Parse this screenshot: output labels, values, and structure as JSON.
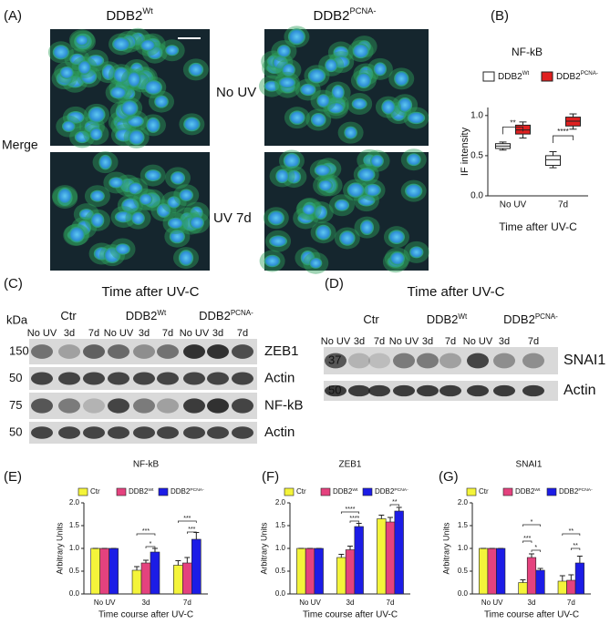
{
  "panel_labels": [
    "(A)",
    "(B)",
    "(C)",
    "(D)",
    "(E)",
    "(F)",
    "(G)"
  ],
  "panel_a": {
    "col_titles": [
      {
        "base": "DDB2",
        "sup": "Wt"
      },
      {
        "base": "DDB2",
        "sup": "PCNA-"
      }
    ],
    "row_labels": [
      "No UV",
      "UV 7d"
    ],
    "side_label": "Merge"
  },
  "panel_c": {
    "title": "Time after UV-C",
    "unit": "kDa",
    "groups": [
      {
        "base": "Ctr"
      },
      {
        "base": "DDB2",
        "sup": "Wt"
      },
      {
        "base": "DDB2",
        "sup": "PCNA-"
      }
    ],
    "lanes": [
      "No UV",
      "3d",
      "7d",
      "No UV",
      "3d",
      "7d",
      "No UV",
      "3d",
      "7d"
    ],
    "blots": [
      {
        "kda": "150",
        "name": "ZEB1"
      },
      {
        "kda": "50",
        "name": "Actin"
      },
      {
        "kda": "75",
        "name": "NF-kB"
      },
      {
        "kda": "50",
        "name": "Actin"
      }
    ]
  },
  "panel_d": {
    "title": "Time after UV-C",
    "groups": [
      {
        "base": "Ctr"
      },
      {
        "base": "DDB2",
        "sup": "Wt"
      },
      {
        "base": "DDB2",
        "sup": "PCNA-"
      }
    ],
    "lanes": [
      "No UV",
      "3d",
      "7d",
      "No UV",
      "3d",
      "7d",
      "No UV",
      "3d",
      "7d"
    ],
    "blots": [
      {
        "kda": "37",
        "name": "SNAI1"
      },
      {
        "kda": "50",
        "name": "Actin"
      }
    ]
  },
  "chart_data": [
    {
      "type": "box",
      "title": "NF-kB",
      "y_label": "IF intensity",
      "x_label": "Time after UV-C",
      "categories": [
        "No UV",
        "7d"
      ],
      "ylim": [
        0,
        1.1
      ],
      "yticks": [
        {
          "value": 0,
          "label": "0.0"
        },
        0.5,
        {
          "value": 1,
          "label": "1.0"
        }
      ],
      "series": [
        {
          "name": "DDB2",
          "sup": "Wt",
          "color": "#ffffff",
          "boxes": [
            {
              "min": 0.57,
              "q1": 0.59,
              "median": 0.62,
              "q3": 0.65,
              "max": 0.67
            },
            {
              "min": 0.35,
              "q1": 0.38,
              "median": 0.45,
              "q3": 0.5,
              "max": 0.55
            }
          ]
        },
        {
          "name": "DDB2",
          "sup": "PCNA-",
          "color": "#e02020",
          "boxes": [
            {
              "min": 0.72,
              "q1": 0.77,
              "median": 0.82,
              "q3": 0.88,
              "max": 0.92
            },
            {
              "min": 0.83,
              "q1": 0.87,
              "median": 0.93,
              "q3": 0.98,
              "max": 1.02
            }
          ]
        }
      ],
      "significance": [
        "**",
        "****"
      ]
    },
    {
      "type": "bar",
      "title": "NF-kB",
      "y_label": "Arbitrary Units",
      "x_label": "Time course after UV-C",
      "categories": [
        "No UV",
        "3d",
        "7d"
      ],
      "ylim": [
        0,
        2
      ],
      "yticks": [
        {
          "value": 0,
          "label": "0.0"
        },
        0.5,
        {
          "value": 1,
          "label": "1.0"
        },
        1.5,
        {
          "value": 2,
          "label": "2.0"
        }
      ],
      "series": [
        {
          "name": "Ctr",
          "color": "#f4f43a",
          "values": [
            1,
            0.52,
            0.63
          ],
          "errors": [
            0,
            0.08,
            0.1
          ]
        },
        {
          "name": "DDB2",
          "sup": "Wt",
          "color": "#e4427e",
          "values": [
            1,
            0.68,
            0.68
          ],
          "errors": [
            0,
            0.06,
            0.12
          ]
        },
        {
          "name": "DDB2",
          "sup": "PCNA-",
          "color": "#1c1ce6",
          "values": [
            1,
            0.92,
            1.2
          ],
          "errors": [
            0,
            0.08,
            0.15
          ]
        }
      ],
      "significance": [
        "***",
        "*",
        "***",
        "***"
      ]
    },
    {
      "type": "bar",
      "title": "ZEB1",
      "y_label": "Arbitrary Units",
      "x_label": "Time course after UV-C",
      "categories": [
        "No UV",
        "3d",
        "7d"
      ],
      "ylim": [
        0,
        2
      ],
      "yticks": [
        {
          "value": 0,
          "label": "0.0"
        },
        0.5,
        {
          "value": 1,
          "label": "1.0"
        },
        1.5,
        {
          "value": 2,
          "label": "2.0"
        }
      ],
      "series": [
        {
          "name": "Ctr",
          "color": "#f4f43a",
          "values": [
            1,
            0.8,
            1.65
          ],
          "errors": [
            0,
            0.07,
            0.08
          ]
        },
        {
          "name": "DDB2",
          "sup": "Wt",
          "color": "#e4427e",
          "values": [
            1,
            0.97,
            1.58
          ],
          "errors": [
            0,
            0.08,
            0.1
          ]
        },
        {
          "name": "DDB2",
          "sup": "PCNA-",
          "color": "#1c1ce6",
          "values": [
            1,
            1.48,
            1.82
          ],
          "errors": [
            0,
            0.07,
            0.08
          ]
        }
      ],
      "significance": [
        "****",
        "****",
        "**"
      ]
    },
    {
      "type": "bar",
      "title": "SNAI1",
      "y_label": "Arbitrary Units",
      "x_label": "Time course after UV-C",
      "categories": [
        "No UV",
        "3d",
        "7d"
      ],
      "ylim": [
        0,
        2
      ],
      "yticks": [
        {
          "value": 0,
          "label": "0.0"
        },
        0.5,
        {
          "value": 1,
          "label": "1.0"
        },
        1.5,
        {
          "value": 2,
          "label": "2.0"
        }
      ],
      "series": [
        {
          "name": "Ctr",
          "color": "#f4f43a",
          "values": [
            1,
            0.25,
            0.28
          ],
          "errors": [
            0,
            0.06,
            0.12
          ]
        },
        {
          "name": "DDB2",
          "sup": "Wt",
          "color": "#e4427e",
          "values": [
            1,
            0.8,
            0.3
          ],
          "errors": [
            0,
            0.08,
            0.12
          ]
        },
        {
          "name": "DDB2",
          "sup": "PCNA-",
          "color": "#1c1ce6",
          "values": [
            1,
            0.52,
            0.68
          ],
          "errors": [
            0,
            0.04,
            0.15
          ]
        }
      ],
      "significance": [
        "*",
        "***",
        "*",
        "**",
        "**"
      ]
    }
  ]
}
